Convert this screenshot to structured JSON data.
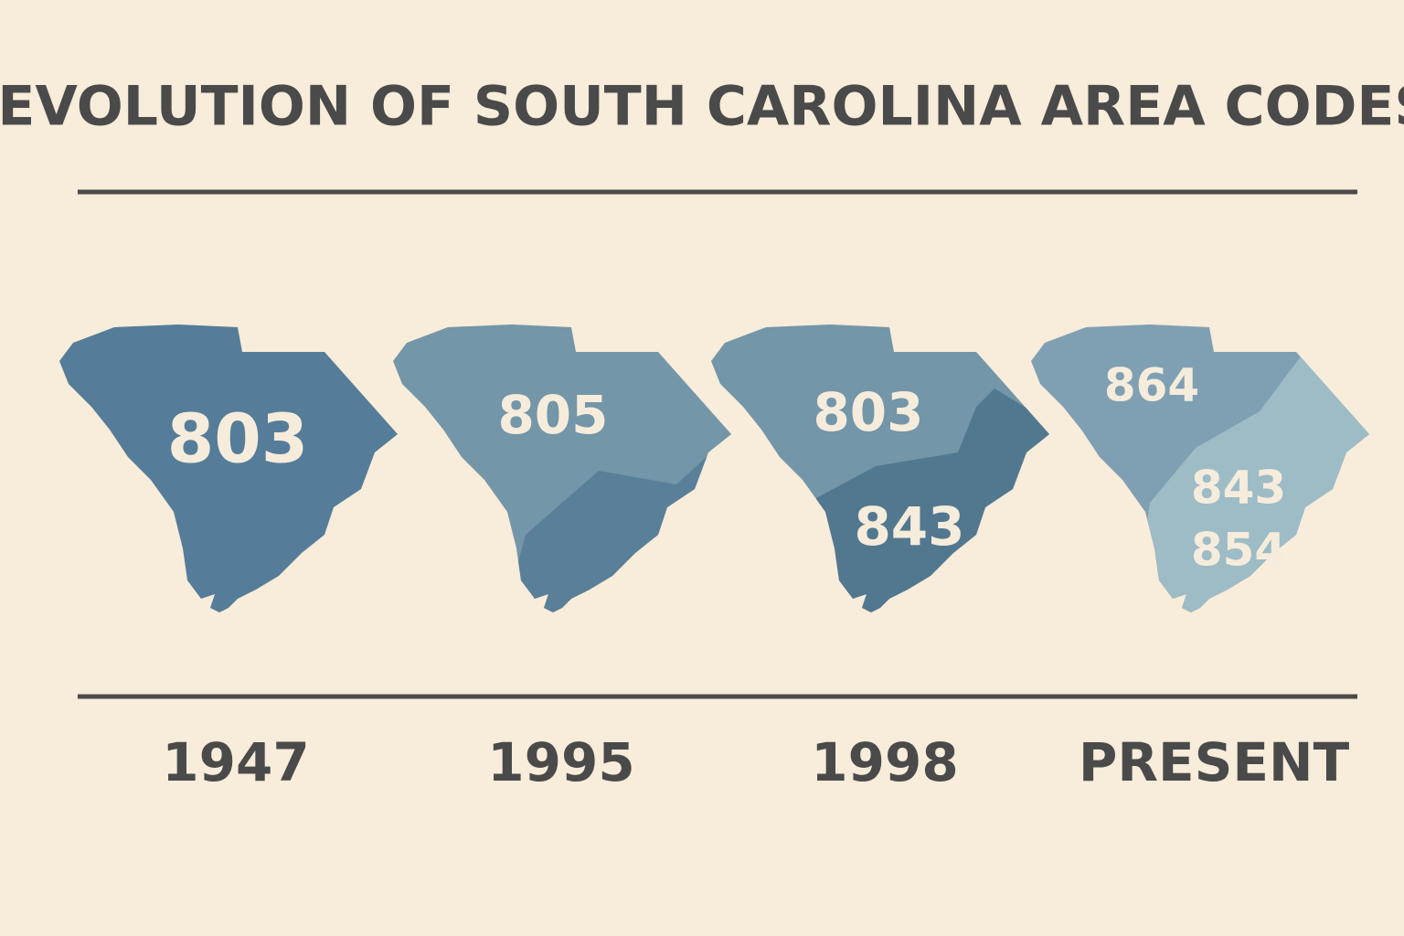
{
  "title": "EVOLUTION OF SOUTH CAROLINA AREA CODES",
  "panels": [
    {
      "year": "1947",
      "codes": [
        "803"
      ]
    },
    {
      "year": "1995",
      "codes": [
        "805"
      ]
    },
    {
      "year": "1998",
      "codes": [
        "803",
        "843"
      ]
    },
    {
      "year": "PRESENT",
      "codes": [
        "864",
        "843",
        "854"
      ]
    }
  ]
}
